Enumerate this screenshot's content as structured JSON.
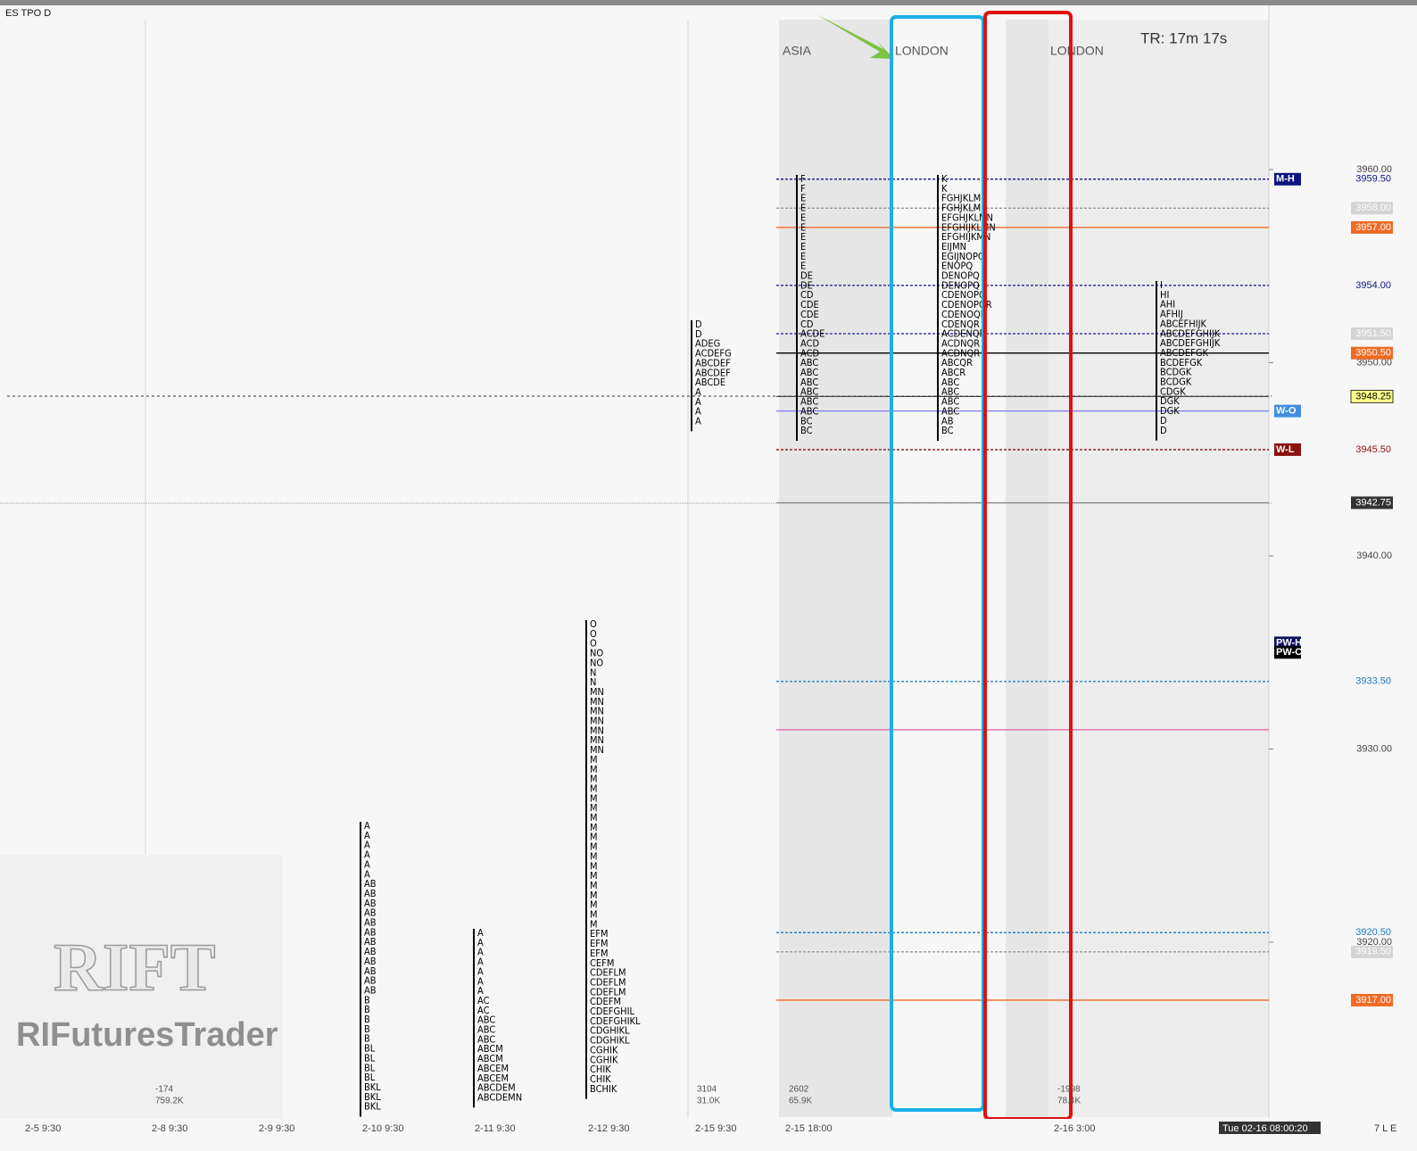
{
  "header": {
    "title": "ES TPO D",
    "timer": "TR: 17m 17s"
  },
  "sessions": [
    "ASIA",
    "LONDON",
    "LONDON"
  ],
  "price_axis": {
    "ticks": [
      {
        "value": 3960,
        "label": "3960.00"
      },
      {
        "value": 3950,
        "label": "3950.00"
      },
      {
        "value": 3940,
        "label": "3940.00"
      },
      {
        "value": 3930,
        "label": "3930.00"
      },
      {
        "value": 3920,
        "label": "3920.00"
      }
    ]
  },
  "levels": [
    {
      "value": 3959.5,
      "label": "3959.50",
      "tag": "M-H",
      "tag_color": "#0d1480",
      "text_color": "#0d1480",
      "box": "none",
      "line_color": "#0d1480"
    },
    {
      "value": 3958,
      "label": "3958.00",
      "box": "#d4d4d4",
      "text_color": "#ffffff",
      "line_color": "#999999"
    },
    {
      "value": 3957,
      "label": "3957.00",
      "box": "#f06a25",
      "text_color": "#ffffff",
      "line_color": "#f06a25"
    },
    {
      "value": 3954,
      "label": "3954.00",
      "box": "none",
      "text_color": "#0d1480",
      "line_color": "#0d1480"
    },
    {
      "value": 3951.5,
      "label": "3951.50",
      "box": "#d4d4d4",
      "text_color": "#ffffff",
      "line_color": "#1a1aa0"
    },
    {
      "value": 3950.5,
      "label": "3950.50",
      "box": "#f06a25",
      "text_color": "#ffffff",
      "line_color": "#000000"
    },
    {
      "value": 3948.25,
      "label": "3948.25",
      "box": "#ffff88",
      "text_color": "#000000",
      "line_color": "#444444"
    },
    {
      "value": 3947.5,
      "tag": "W-O",
      "tag_color": "#3f8fe0",
      "line_color": "#7a7ae8"
    },
    {
      "value": 3945.5,
      "label": "3945.50",
      "tag": "W-L",
      "tag_color": "#8b1010",
      "text_color": "#8b1010",
      "box": "none",
      "line_color": "#8b1010"
    },
    {
      "value": 3942.75,
      "label": "3942.75",
      "box": "#333333",
      "text_color": "#ffffff",
      "line_color": "#888888"
    },
    {
      "value": 3935.5,
      "tag": "PW-H",
      "tag_color": "#0d1060"
    },
    {
      "value": 3935,
      "tag": "PW-C",
      "tag_color": "#000000"
    },
    {
      "value": 3933.5,
      "label": "3933.50",
      "box": "none",
      "text_color": "#1a7ac0",
      "line_color": "#1a7ac0"
    },
    {
      "value": 3931,
      "line_color": "#e85aa8"
    },
    {
      "value": 3920.5,
      "label": "3920.50",
      "box": "none",
      "text_color": "#1a7ac0",
      "line_color": "#1a7ac0"
    },
    {
      "value": 3919.5,
      "label": "3919.50",
      "box": "#d4d4d4",
      "text_color": "#ffffff",
      "line_color": "#999999"
    },
    {
      "value": 3917,
      "label": "3917.00",
      "box": "#f06a25",
      "text_color": "#ffffff",
      "line_color": "#f06a25"
    }
  ],
  "dates": [
    "2-5 9:30",
    "2-8 9:30",
    "2-9 9:30",
    "2-10 9:30",
    "2-11 9:30",
    "2-12 9:30",
    "2-15 9:30",
    "2-15 18:00",
    "2-16 3:00"
  ],
  "stats": [
    [
      "-174",
      "759.2K"
    ],
    [
      "3104",
      "31.0K"
    ],
    [
      "2602",
      "65.9K"
    ],
    [
      "-1998",
      "78.4K"
    ]
  ],
  "profiles": [
    {
      "rows": [
        "A",
        "A",
        "A",
        "A",
        "A",
        "A",
        "AB",
        "AB",
        "AB",
        "AB",
        "AB",
        "AB",
        "AB",
        "AB",
        "AB",
        "AB",
        "AB",
        "AB",
        "B",
        "B",
        "B",
        "B",
        "B",
        "BL",
        "BL",
        "BL",
        "BL",
        "BKL",
        "BKL",
        "BKL"
      ]
    },
    {
      "rows": [
        "A",
        "A",
        "A",
        "A",
        "A",
        "A",
        "A",
        "AC",
        "AC",
        "ABC",
        "ABC",
        "ABC",
        "ABCM",
        "ABCM",
        "ABCEM",
        "ABCEM",
        "ABCDEM",
        "ABCDEMN"
      ]
    },
    {
      "rows": [
        "O",
        "O",
        "O",
        "NO",
        "NO",
        "N",
        "N",
        "MN",
        "MN",
        "MN",
        "MN",
        "MN",
        "MN",
        "MN",
        "M",
        "M",
        "M",
        "M",
        "M",
        "M",
        "M",
        "M",
        "M",
        "M",
        "M",
        "M",
        "M",
        "M",
        "M",
        "M",
        "M",
        "M",
        "EFM",
        "EFM",
        "EFM",
        "CEFM",
        "CDEFLM",
        "CDEFLM",
        "CDEFLM",
        "CDEFM",
        "CDEFGHIL",
        "CDEFGHIKL",
        "CDGHIKL",
        "CDGHIKL",
        "CGHIK",
        "CGHIK",
        "CHIK",
        "CHIK",
        "BCHIK"
      ]
    },
    {
      "rows": [
        "D",
        "D",
        "ADEG",
        "ACDEFG",
        "ABCDEF",
        "ABCDEF",
        "ABCDE",
        "A",
        "A",
        "A",
        "A"
      ]
    },
    {
      "rows": [
        "F",
        "F",
        "E",
        "E",
        "E",
        "E",
        "E",
        "E",
        "E",
        "E",
        "DE",
        "DE",
        "CD",
        "CDE",
        "CDE",
        "CD",
        "ACDE",
        "ACD",
        "ACD",
        "ABC",
        "ABC",
        "ABC",
        "ABC",
        "ABC",
        "ABC",
        "BC",
        "BC"
      ]
    },
    {
      "rows": [
        "K",
        "K",
        "FGHJKLM",
        "FGHJKLM",
        "EFGHJKLMN",
        "EFGHIJKLMN",
        "EFGHIJKMN",
        "EIJMN",
        "EGIJNOPQ",
        "ENOPQ",
        "DENOPQ",
        "DENOPQ",
        "CDENOPQ",
        "CDENOPQR",
        "CDENOQR",
        "CDENQR",
        "ACDENQR",
        "ACDNQR",
        "ACDNQR",
        "ABCQR",
        "ABCR",
        "ABC",
        "ABC",
        "ABC",
        "ABC",
        "AB",
        "BC"
      ]
    },
    {
      "rows": [
        "I",
        "HI",
        "AHI",
        "AFHIJ",
        "ABCEFHIJK",
        "ABCDEFGHIJK",
        "ABCDEFGHIJK",
        "ABCDEFGK",
        "BCDEFGK",
        "BCDGK",
        "BCDGK",
        "CDGK",
        "DGK",
        "DGK",
        "D",
        "D"
      ]
    }
  ],
  "watermark": {
    "logo": "RIFT",
    "name": "RIFuturesTrader"
  },
  "footer": {
    "time": "Tue 02-16  08:00:20",
    "mode": "7 L E"
  }
}
